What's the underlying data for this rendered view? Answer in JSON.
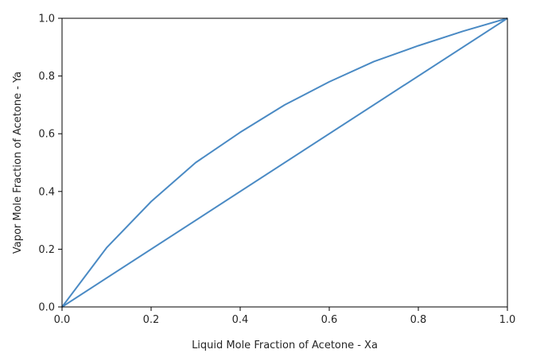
{
  "chart_data": {
    "type": "line",
    "xlabel": "Liquid Mole Fraction of Acetone - Xa",
    "ylabel": "Vapor Mole Fraction of Acetone -  Ya",
    "xlim": [
      0,
      1
    ],
    "ylim": [
      0,
      1
    ],
    "grid": false,
    "x_ticks": [
      "0.0",
      "0.2",
      "0.4",
      "0.6",
      "0.8",
      "1.0"
    ],
    "y_ticks": [
      "0.0",
      "0.2",
      "0.4",
      "0.6",
      "0.8",
      "1.0"
    ],
    "series": [
      {
        "color": "#4a8ac4",
        "x": [
          0.0,
          0.1,
          0.2,
          0.3,
          0.4,
          0.5,
          0.6,
          0.7,
          0.8,
          0.9,
          1.0
        ],
        "y": [
          0.0,
          0.205,
          0.365,
          0.5,
          0.605,
          0.7,
          0.78,
          0.85,
          0.905,
          0.955,
          1.0
        ]
      },
      {
        "color": "#4a8ac4",
        "x": [
          0.0,
          1.0
        ],
        "y": [
          0.0,
          1.0
        ]
      }
    ]
  }
}
